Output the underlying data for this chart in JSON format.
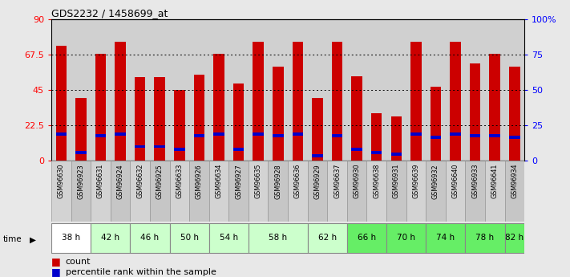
{
  "title": "GDS2232 / 1458699_at",
  "samples": [
    "GSM96630",
    "GSM96923",
    "GSM96631",
    "GSM96924",
    "GSM96632",
    "GSM96925",
    "GSM96633",
    "GSM96926",
    "GSM96634",
    "GSM96927",
    "GSM96635",
    "GSM96928",
    "GSM96636",
    "GSM96929",
    "GSM96637",
    "GSM96930",
    "GSM96638",
    "GSM96931",
    "GSM96639",
    "GSM96932",
    "GSM96640",
    "GSM96933",
    "GSM96641",
    "GSM96934"
  ],
  "counts": [
    73,
    40,
    68,
    76,
    53,
    53,
    45,
    55,
    68,
    49,
    76,
    60,
    76,
    40,
    76,
    54,
    30,
    28,
    76,
    47,
    76,
    62,
    68,
    60
  ],
  "percentiles": [
    17,
    5,
    16,
    17,
    9,
    9,
    7,
    16,
    17,
    7,
    17,
    16,
    17,
    3,
    16,
    7,
    5,
    4,
    17,
    15,
    17,
    16,
    16,
    15
  ],
  "time_groups": [
    {
      "label": "38 h",
      "start": 0,
      "end": 2,
      "color": "#ffffff"
    },
    {
      "label": "42 h",
      "start": 2,
      "end": 4,
      "color": "#ccffcc"
    },
    {
      "label": "46 h",
      "start": 4,
      "end": 6,
      "color": "#ccffcc"
    },
    {
      "label": "50 h",
      "start": 6,
      "end": 8,
      "color": "#ccffcc"
    },
    {
      "label": "54 h",
      "start": 8,
      "end": 10,
      "color": "#ccffcc"
    },
    {
      "label": "58 h",
      "start": 10,
      "end": 13,
      "color": "#ccffcc"
    },
    {
      "label": "62 h",
      "start": 13,
      "end": 15,
      "color": "#ccffcc"
    },
    {
      "label": "66 h",
      "start": 15,
      "end": 17,
      "color": "#66ee66"
    },
    {
      "label": "70 h",
      "start": 17,
      "end": 19,
      "color": "#66ee66"
    },
    {
      "label": "74 h",
      "start": 19,
      "end": 21,
      "color": "#66ee66"
    },
    {
      "label": "78 h",
      "start": 21,
      "end": 23,
      "color": "#66ee66"
    },
    {
      "label": "82 h",
      "start": 23,
      "end": 24,
      "color": "#66ee66"
    }
  ],
  "bar_color": "#cc0000",
  "percentile_color": "#0000cc",
  "ylim_left": [
    0,
    90
  ],
  "yticks_left": [
    0,
    22.5,
    45,
    67.5,
    90
  ],
  "ytick_labels_left": [
    "0",
    "22.5",
    "45",
    "67.5",
    "90"
  ],
  "ytick_labels_right": [
    "0",
    "25",
    "50",
    "75",
    "100%"
  ],
  "yticks_right": [
    0,
    25,
    50,
    75,
    100
  ],
  "hlines": [
    22.5,
    45,
    67.5
  ],
  "bar_width": 0.55,
  "bg_color": "#e8e8e8",
  "col_bg_even": "#d0d0d0",
  "col_bg_odd": "#c0c0c0",
  "legend_count_label": "count",
  "legend_pct_label": "percentile rank within the sample"
}
